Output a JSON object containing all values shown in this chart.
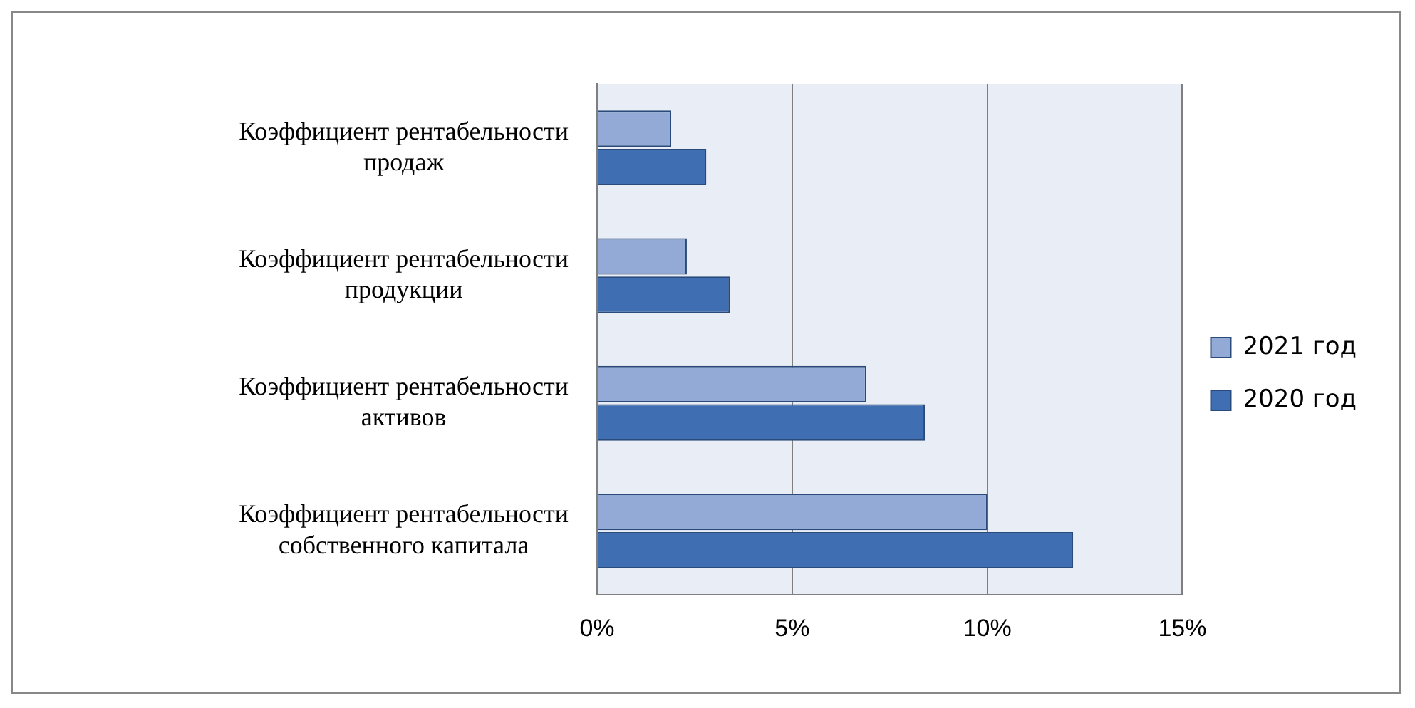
{
  "chart_data": {
    "type": "bar",
    "orientation": "horizontal",
    "categories": [
      "Коэффициент рентабельности продаж",
      "Коэффициент рентабельности продукции",
      "Коэффициент рентабельности активов",
      "Коэффициент рентабельности собственного капитала"
    ],
    "series": [
      {
        "name": "2021 год",
        "color": "#94aad6",
        "values": [
          1.9,
          2.3,
          6.9,
          10.0
        ]
      },
      {
        "name": "2020 год",
        "color": "#3f6fb2",
        "values": [
          2.8,
          3.4,
          8.4,
          12.2
        ]
      }
    ],
    "xlim": [
      0,
      15
    ],
    "xticks": [
      {
        "value": 0,
        "label": "0%"
      },
      {
        "value": 5,
        "label": "5%"
      },
      {
        "value": 10,
        "label": "10%"
      },
      {
        "value": 15,
        "label": "15%"
      }
    ],
    "grid": "x",
    "legend": "right"
  }
}
